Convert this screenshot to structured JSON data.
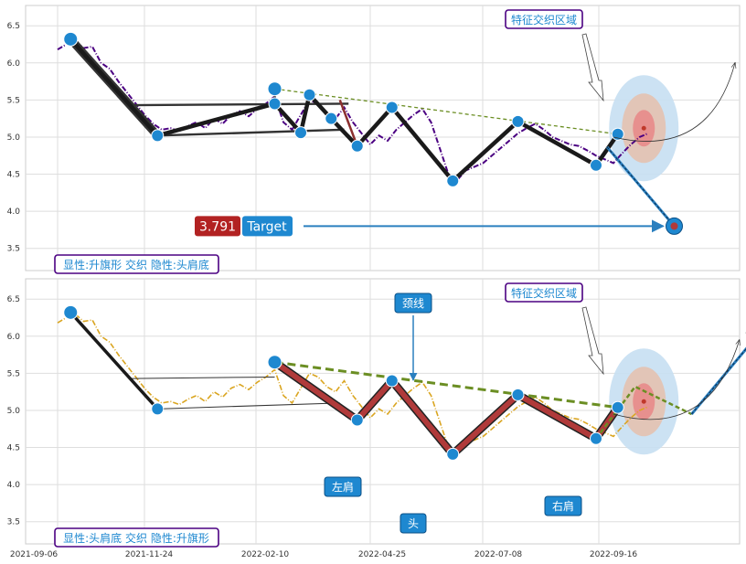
{
  "chart_data": [
    {
      "type": "line",
      "panel": "top",
      "title": "",
      "xlabel": "",
      "ylabel": "",
      "ylim": [
        3.25,
        6.7
      ],
      "yticks": [
        "3.5",
        "4.0",
        "4.5",
        "5.0",
        "5.5",
        "6.0",
        "6.5"
      ],
      "grid": true,
      "price_color": "#4B0082",
      "price_style": "dash-dot",
      "price": [
        [
          0,
          6.18
        ],
        [
          2,
          6.25
        ],
        [
          4,
          6.3
        ],
        [
          6,
          6.2
        ],
        [
          8,
          6.22
        ],
        [
          10,
          6.0
        ],
        [
          12,
          5.92
        ],
        [
          14,
          5.75
        ],
        [
          16,
          5.6
        ],
        [
          18,
          5.45
        ],
        [
          20,
          5.3
        ],
        [
          22,
          5.18
        ],
        [
          24,
          5.1
        ],
        [
          26,
          5.12
        ],
        [
          28,
          5.08
        ],
        [
          30,
          5.15
        ],
        [
          32,
          5.2
        ],
        [
          34,
          5.12
        ],
        [
          36,
          5.25
        ],
        [
          38,
          5.18
        ],
        [
          40,
          5.3
        ],
        [
          42,
          5.35
        ],
        [
          44,
          5.28
        ],
        [
          46,
          5.38
        ],
        [
          48,
          5.45
        ],
        [
          50,
          5.55
        ],
        [
          52,
          5.2
        ],
        [
          54,
          5.1
        ],
        [
          56,
          5.3
        ],
        [
          58,
          5.5
        ],
        [
          60,
          5.45
        ],
        [
          62,
          5.32
        ],
        [
          64,
          5.25
        ],
        [
          66,
          5.4
        ],
        [
          68,
          5.2
        ],
        [
          70,
          5.05
        ],
        [
          72,
          4.9
        ],
        [
          74,
          5.02
        ],
        [
          76,
          4.95
        ],
        [
          78,
          5.1
        ],
        [
          80,
          5.2
        ],
        [
          82,
          5.3
        ],
        [
          84,
          5.38
        ],
        [
          86,
          5.2
        ],
        [
          88,
          4.85
        ],
        [
          90,
          4.5
        ],
        [
          92,
          4.42
        ],
        [
          94,
          4.55
        ],
        [
          96,
          4.6
        ],
        [
          98,
          4.65
        ],
        [
          100,
          4.75
        ],
        [
          102,
          4.85
        ],
        [
          104,
          4.95
        ],
        [
          106,
          5.05
        ],
        [
          108,
          5.12
        ],
        [
          110,
          5.18
        ],
        [
          112,
          5.1
        ],
        [
          114,
          5.0
        ],
        [
          116,
          4.95
        ],
        [
          118,
          4.9
        ],
        [
          120,
          4.88
        ],
        [
          122,
          4.82
        ],
        [
          124,
          4.75
        ],
        [
          126,
          4.7
        ],
        [
          128,
          4.65
        ],
        [
          130,
          4.78
        ],
        [
          132,
          4.9
        ],
        [
          134,
          5.0
        ],
        [
          136,
          5.05
        ]
      ],
      "pivots": [
        {
          "label": "P1",
          "x": 3,
          "y": 6.32
        },
        {
          "label": "P2",
          "x": 23,
          "y": 5.02
        },
        {
          "label": "P3",
          "x": 50,
          "y": 5.65
        },
        {
          "label": "P4",
          "x": 50,
          "y": 5.45
        },
        {
          "label": "P5",
          "x": 56,
          "y": 5.06
        },
        {
          "label": "P6",
          "x": 58,
          "y": 5.57
        },
        {
          "label": "P7",
          "x": 63,
          "y": 5.25
        },
        {
          "label": "P8",
          "x": 69,
          "y": 4.88
        },
        {
          "label": "P9",
          "x": 77,
          "y": 5.4
        },
        {
          "label": "P10",
          "x": 91,
          "y": 4.41
        },
        {
          "label": "P11",
          "x": 106,
          "y": 5.21
        },
        {
          "label": "P12",
          "x": 124,
          "y": 4.62
        },
        {
          "label": "P13",
          "x": 129,
          "y": 5.04
        }
      ],
      "target": {
        "label": "Target",
        "value": "3.791",
        "x": 142,
        "y": 3.8
      },
      "zone_label": "特征交织区域",
      "zone_center": {
        "x": 135,
        "y": 5.12
      },
      "pattern_label": "显性:升旗形 交织 隐性:头肩底"
    },
    {
      "type": "line",
      "panel": "bottom",
      "title": "",
      "xlabel": "",
      "ylabel": "",
      "ylim": [
        3.25,
        6.7
      ],
      "yticks": [
        "3.5",
        "4.0",
        "4.5",
        "5.0",
        "5.5",
        "6.0",
        "6.5"
      ],
      "grid": true,
      "x_tick_labels": [
        "2021-09-06",
        "2021-11-24",
        "2022-02-10",
        "2022-04-25",
        "2022-07-08",
        "2022-09-16"
      ],
      "price_color": "#DAA520",
      "price_style": "dash-dot",
      "price": [
        [
          0,
          6.18
        ],
        [
          2,
          6.25
        ],
        [
          4,
          6.3
        ],
        [
          6,
          6.2
        ],
        [
          8,
          6.22
        ],
        [
          10,
          6.0
        ],
        [
          12,
          5.92
        ],
        [
          14,
          5.75
        ],
        [
          16,
          5.6
        ],
        [
          18,
          5.45
        ],
        [
          20,
          5.3
        ],
        [
          22,
          5.18
        ],
        [
          24,
          5.1
        ],
        [
          26,
          5.12
        ],
        [
          28,
          5.08
        ],
        [
          30,
          5.15
        ],
        [
          32,
          5.2
        ],
        [
          34,
          5.12
        ],
        [
          36,
          5.25
        ],
        [
          38,
          5.18
        ],
        [
          40,
          5.3
        ],
        [
          42,
          5.35
        ],
        [
          44,
          5.28
        ],
        [
          46,
          5.38
        ],
        [
          48,
          5.45
        ],
        [
          50,
          5.55
        ],
        [
          52,
          5.2
        ],
        [
          54,
          5.1
        ],
        [
          56,
          5.3
        ],
        [
          58,
          5.5
        ],
        [
          60,
          5.45
        ],
        [
          62,
          5.32
        ],
        [
          64,
          5.25
        ],
        [
          66,
          5.4
        ],
        [
          68,
          5.2
        ],
        [
          70,
          5.05
        ],
        [
          72,
          4.9
        ],
        [
          74,
          5.02
        ],
        [
          76,
          4.95
        ],
        [
          78,
          5.1
        ],
        [
          80,
          5.2
        ],
        [
          82,
          5.3
        ],
        [
          84,
          5.38
        ],
        [
          86,
          5.2
        ],
        [
          88,
          4.85
        ],
        [
          90,
          4.5
        ],
        [
          92,
          4.42
        ],
        [
          94,
          4.55
        ],
        [
          96,
          4.6
        ],
        [
          98,
          4.65
        ],
        [
          100,
          4.75
        ],
        [
          102,
          4.85
        ],
        [
          104,
          4.95
        ],
        [
          106,
          5.05
        ],
        [
          108,
          5.12
        ],
        [
          110,
          5.18
        ],
        [
          112,
          5.1
        ],
        [
          114,
          5.0
        ],
        [
          116,
          4.95
        ],
        [
          118,
          4.9
        ],
        [
          120,
          4.88
        ],
        [
          122,
          4.82
        ],
        [
          124,
          4.75
        ],
        [
          126,
          4.7
        ],
        [
          128,
          4.65
        ],
        [
          130,
          4.78
        ],
        [
          132,
          4.9
        ],
        [
          134,
          5.0
        ],
        [
          136,
          5.05
        ]
      ],
      "pivots": [
        {
          "label": "B1",
          "x": 3,
          "y": 6.32
        },
        {
          "label": "B2",
          "x": 23,
          "y": 5.02
        },
        {
          "label": "B3",
          "x": 50,
          "y": 5.65
        },
        {
          "label": "B4",
          "x": 69,
          "y": 4.87
        },
        {
          "label": "B5",
          "x": 77,
          "y": 5.4
        },
        {
          "label": "B6",
          "x": 91,
          "y": 4.41
        },
        {
          "label": "B7",
          "x": 106,
          "y": 5.21
        },
        {
          "label": "B8",
          "x": 124,
          "y": 4.62
        },
        {
          "label": "B9",
          "x": 129,
          "y": 5.04
        }
      ],
      "neckline_label": "颈线",
      "left_shoulder_label": "左肩",
      "head_label": "头",
      "right_shoulder_label": "右肩",
      "zone_label": "特征交织区域",
      "zone_center": {
        "x": 135,
        "y": 5.12
      },
      "pattern_label": "显性:头肩底 交织 隐性:升旗形"
    }
  ],
  "colors": {
    "pivot": "#1E88D0",
    "zig": "#1a1a1a",
    "hs": "#B03A3A",
    "neck": "#6B8E23",
    "accent_blue": "#2A7FBF",
    "label_text": "#1E88D0",
    "label_border": "#4B0082",
    "badge_red": "#B22222",
    "badge_blue": "#1E88D0"
  }
}
